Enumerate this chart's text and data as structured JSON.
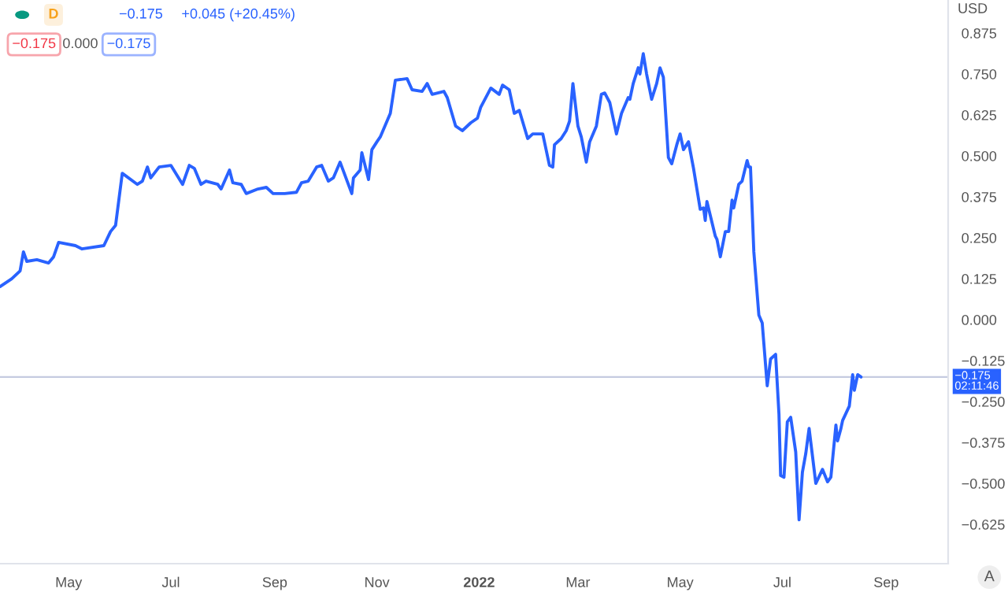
{
  "chart_data": {
    "type": "line",
    "ylabel": "USD",
    "annotations": [
      "D",
      "−0.175",
      "+0.045 (+20.45%)",
      "−0.175",
      "0.000",
      "−0.175",
      "A"
    ],
    "x": [
      "2021-03-21",
      "2021-03-28",
      "2021-04-02",
      "2021-04-04",
      "2021-04-06",
      "2021-04-12",
      "2021-04-19",
      "2021-04-22",
      "2021-04-25",
      "2021-05-05",
      "2021-05-09",
      "2021-05-22",
      "2021-05-26",
      "2021-05-29",
      "2021-06-02",
      "2021-06-11",
      "2021-06-14",
      "2021-06-17",
      "2021-06-19",
      "2021-06-24",
      "2021-07-01",
      "2021-07-08",
      "2021-07-12",
      "2021-07-15",
      "2021-07-19",
      "2021-07-22",
      "2021-07-29",
      "2021-07-31",
      "2021-08-05",
      "2021-08-07",
      "2021-08-12",
      "2021-08-15",
      "2021-08-22",
      "2021-08-27",
      "2021-08-31",
      "2021-09-07",
      "2021-09-14",
      "2021-09-17",
      "2021-09-21",
      "2021-09-26",
      "2021-09-29",
      "2021-10-03",
      "2021-10-06",
      "2021-10-10",
      "2021-10-17",
      "2021-10-18",
      "2021-10-22",
      "2021-10-23",
      "2021-10-27",
      "2021-10-29",
      "2021-11-01",
      "2021-11-03",
      "2021-11-09",
      "2021-11-12",
      "2021-11-19",
      "2021-11-22",
      "2021-11-28",
      "2021-12-01",
      "2021-12-04",
      "2021-12-11",
      "2021-12-13",
      "2021-12-18",
      "2021-12-22",
      "2021-12-27",
      "2021-12-31",
      "2022-01-02",
      "2022-01-08",
      "2022-01-13",
      "2022-01-15",
      "2022-01-19",
      "2022-01-22",
      "2022-01-25",
      "2022-01-30",
      "2022-02-02",
      "2022-02-08",
      "2022-02-12",
      "2022-02-14",
      "2022-02-15",
      "2022-02-19",
      "2022-02-22",
      "2022-02-24",
      "2022-02-26",
      "2022-03-01",
      "2022-03-03",
      "2022-03-06",
      "2022-03-08",
      "2022-03-12",
      "2022-03-15",
      "2022-03-17",
      "2022-03-20",
      "2022-03-22",
      "2022-03-24",
      "2022-03-27",
      "2022-03-31",
      "2022-04-01",
      "2022-04-03",
      "2022-04-06",
      "2022-04-07",
      "2022-04-09",
      "2022-04-11",
      "2022-04-14",
      "2022-04-17",
      "2022-04-19",
      "2022-04-21",
      "2022-04-24",
      "2022-04-26",
      "2022-04-29",
      "2022-05-01",
      "2022-05-03",
      "2022-05-06",
      "2022-05-09",
      "2022-05-13",
      "2022-05-15",
      "2022-05-16",
      "2022-05-17",
      "2022-05-22",
      "2022-05-23",
      "2022-05-25",
      "2022-05-28",
      "2022-05-30",
      "2022-06-01",
      "2022-06-02",
      "2022-06-05",
      "2022-06-07",
      "2022-06-10",
      "2022-06-11",
      "2022-06-12",
      "2022-06-14",
      "2022-06-17",
      "2022-06-19",
      "2022-06-22",
      "2022-06-24",
      "2022-06-27",
      "2022-06-29",
      "2022-06-30",
      "2022-07-02",
      "2022-07-04",
      "2022-07-06",
      "2022-07-09",
      "2022-07-11",
      "2022-07-13",
      "2022-07-15",
      "2022-07-17",
      "2022-07-21",
      "2022-07-25",
      "2022-07-28",
      "2022-07-30",
      "2022-08-02",
      "2022-08-03",
      "2022-08-05",
      "2022-08-06",
      "2022-08-10",
      "2022-08-12",
      "2022-08-13",
      "2022-08-15",
      "2022-08-17"
    ],
    "series": [
      {
        "color": "#2962ff",
        "values": [
          0.101,
          0.125,
          0.149,
          0.207,
          0.178,
          0.183,
          0.173,
          0.192,
          0.236,
          0.226,
          0.216,
          0.226,
          0.269,
          0.288,
          0.447,
          0.413,
          0.423,
          0.466,
          0.433,
          0.466,
          0.471,
          0.413,
          0.471,
          0.462,
          0.413,
          0.423,
          0.413,
          0.399,
          0.457,
          0.418,
          0.413,
          0.385,
          0.399,
          0.404,
          0.385,
          0.385,
          0.389,
          0.418,
          0.423,
          0.466,
          0.471,
          0.423,
          0.433,
          0.481,
          0.385,
          0.433,
          0.457,
          0.51,
          0.428,
          0.519,
          0.543,
          0.558,
          0.63,
          0.731,
          0.736,
          0.702,
          0.697,
          0.721,
          0.688,
          0.697,
          0.678,
          0.591,
          0.577,
          0.601,
          0.615,
          0.649,
          0.707,
          0.688,
          0.716,
          0.702,
          0.63,
          0.639,
          0.553,
          0.567,
          0.567,
          0.471,
          0.466,
          0.534,
          0.553,
          0.577,
          0.606,
          0.721,
          0.591,
          0.558,
          0.481,
          0.543,
          0.591,
          0.688,
          0.692,
          0.663,
          0.615,
          0.567,
          0.63,
          0.678,
          0.673,
          0.721,
          0.769,
          0.75,
          0.812,
          0.75,
          0.673,
          0.721,
          0.769,
          0.74,
          0.495,
          0.476,
          0.534,
          0.567,
          0.519,
          0.543,
          0.462,
          0.337,
          0.341,
          0.303,
          0.361,
          0.255,
          0.245,
          0.192,
          0.269,
          0.269,
          0.365,
          0.341,
          0.413,
          0.423,
          0.486,
          0.466,
          0.466,
          0.207,
          0.014,
          -0.01,
          -0.202,
          -0.12,
          -0.106,
          -0.288,
          -0.476,
          -0.481,
          -0.312,
          -0.298,
          -0.404,
          -0.611,
          -0.466,
          -0.409,
          -0.332,
          -0.5,
          -0.457,
          -0.495,
          -0.481,
          -0.322,
          -0.37,
          -0.332,
          -0.308,
          -0.264,
          -0.168,
          -0.216,
          -0.168,
          -0.175
        ]
      }
    ],
    "xlim": [
      "2021-03-21",
      "2022-10-08"
    ],
    "xticks": [
      {
        "value": "2021-05-01",
        "label": "May"
      },
      {
        "value": "2021-07-01",
        "label": "Jul"
      },
      {
        "value": "2021-09-01",
        "label": "Sep"
      },
      {
        "value": "2021-11-01",
        "label": "Nov"
      },
      {
        "value": "2022-01-01",
        "label": "2022"
      },
      {
        "value": "2022-03-01",
        "label": "Mar"
      },
      {
        "value": "2022-05-01",
        "label": "May"
      },
      {
        "value": "2022-07-01",
        "label": "Jul"
      },
      {
        "value": "2022-09-01",
        "label": "Sep"
      }
    ],
    "ylim": [
      -0.745,
      0.976
    ],
    "yticks": [
      {
        "value": -0.625,
        "label": "−0.625"
      },
      {
        "value": -0.5,
        "label": "−0.500"
      },
      {
        "value": -0.375,
        "label": "−0.375"
      },
      {
        "value": -0.25,
        "label": "−0.250"
      },
      {
        "value": -0.125,
        "label": "−0.125"
      },
      {
        "value": 0,
        "label": "0.000"
      },
      {
        "value": 0.125,
        "label": "0.125"
      },
      {
        "value": 0.25,
        "label": "0.250"
      },
      {
        "value": 0.375,
        "label": "0.375"
      },
      {
        "value": 0.5,
        "label": "0.500"
      },
      {
        "value": 0.625,
        "label": "0.625"
      },
      {
        "value": 0.75,
        "label": "0.750"
      },
      {
        "value": 0.875,
        "label": "0.875"
      }
    ],
    "ref_lines": [
      {
        "axis": "y",
        "value": -0.175,
        "label": "−0.175\n02:11:46",
        "color": "#c5cbe0"
      }
    ],
    "grid": false,
    "legend": false,
    "line_style": "solid",
    "marker": "none"
  }
}
